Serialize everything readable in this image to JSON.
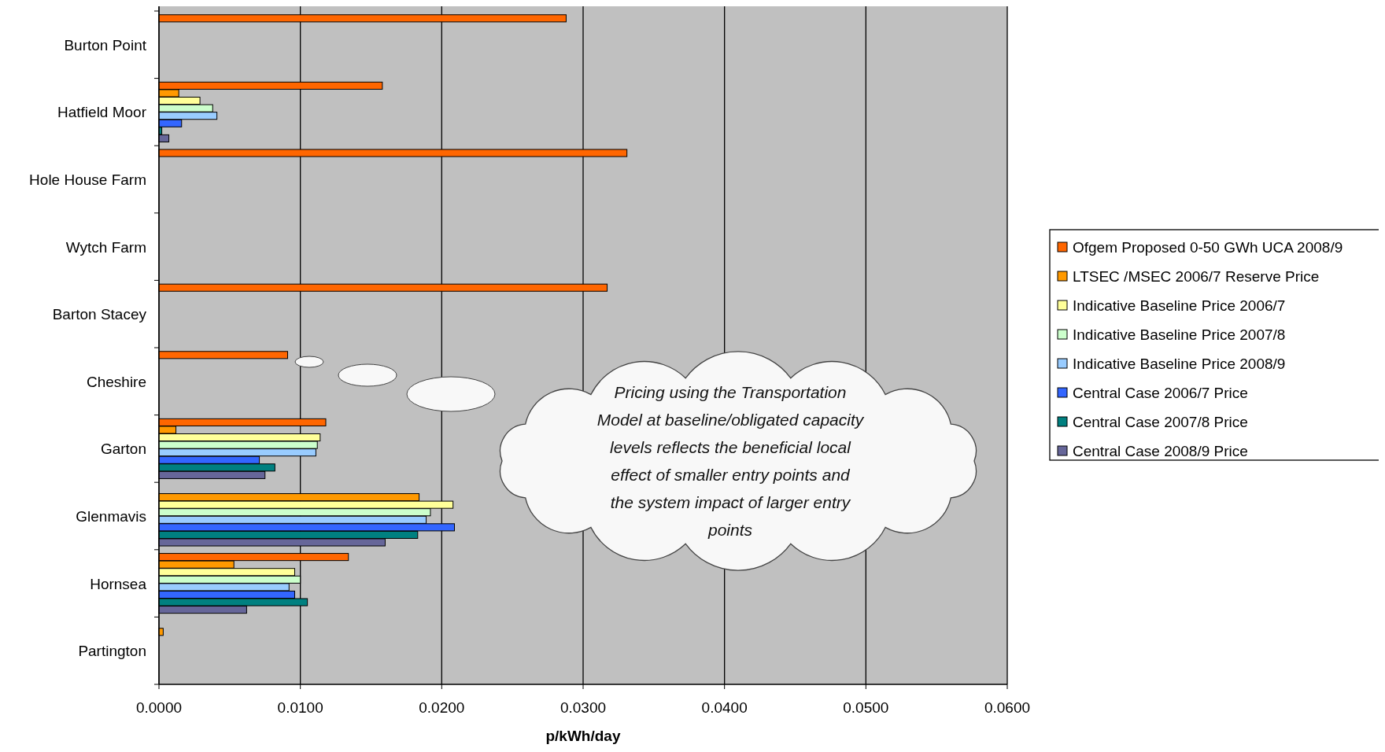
{
  "chart_data": {
    "type": "bar",
    "orientation": "horizontal",
    "xlabel": "p/kWh/day",
    "categories": [
      "Burton Point",
      "Hatfield Moor",
      "Hole House Farm",
      "Wytch Farm",
      "Barton Stacey",
      "Cheshire",
      "Garton",
      "Glenmavis",
      "Hornsea",
      "Partington"
    ],
    "series": [
      {
        "name": "Ofgem Proposed 0-50 GWh UCA 2008/9",
        "color": "#ff6600",
        "values": [
          0.0288,
          0.0158,
          0.0331,
          0,
          0.0317,
          0.0091,
          0.0118,
          0,
          0.0134,
          0
        ]
      },
      {
        "name": "LTSEC /MSEC  2006/7 Reserve Price",
        "color": "#ff9900",
        "values": [
          0,
          0.0014,
          0,
          0,
          0,
          0,
          0.0012,
          0.0184,
          0.0053,
          0.0003
        ]
      },
      {
        "name": "Indicative Baseline Price 2006/7",
        "color": "#ffff99",
        "values": [
          0,
          0.0029,
          0,
          0,
          0,
          0,
          0.0114,
          0.0208,
          0.0096,
          0
        ]
      },
      {
        "name": "Indicative Baseline Price 2007/8",
        "color": "#ccffcc",
        "values": [
          0,
          0.0038,
          0,
          0,
          0,
          0,
          0.0112,
          0.0192,
          0.01,
          0
        ]
      },
      {
        "name": "Indicative Baseline Price 2008/9",
        "color": "#99ccff",
        "values": [
          0,
          0.0041,
          0,
          0,
          0,
          0,
          0.0111,
          0.0189,
          0.0092,
          0
        ]
      },
      {
        "name": "Central Case 2006/7 Price",
        "color": "#3366ff",
        "values": [
          0,
          0.0016,
          0,
          0,
          0,
          0,
          0.0071,
          0.0209,
          0.0096,
          0
        ]
      },
      {
        "name": "Central Case 2007/8 Price",
        "color": "#008080",
        "values": [
          0,
          0.0002,
          0,
          0,
          0,
          0,
          0.0082,
          0.0183,
          0.0105,
          0
        ]
      },
      {
        "name": "Central Case 2008/9 Price",
        "color": "#666699",
        "values": [
          0,
          0.0007,
          0,
          0,
          0,
          0,
          0.0075,
          0.016,
          0.0062,
          0
        ]
      }
    ],
    "xlim": [
      0,
      0.06
    ],
    "xticks": [
      {
        "value": 0,
        "label": "0.0000"
      },
      {
        "value": 0.01,
        "label": "0.0100"
      },
      {
        "value": 0.02,
        "label": "0.0200"
      },
      {
        "value": 0.03,
        "label": "0.0300"
      },
      {
        "value": 0.04,
        "label": "0.0400"
      },
      {
        "value": 0.05,
        "label": "0.0500"
      },
      {
        "value": 0.06,
        "label": "0.0600"
      }
    ],
    "grid": "x",
    "legend": "right",
    "annotations": [
      "Pricing using the Transportation Model at baseline/obligated capacity levels reflects the beneficial local effect of smaller entry points and the system impact of larger entry points"
    ]
  }
}
